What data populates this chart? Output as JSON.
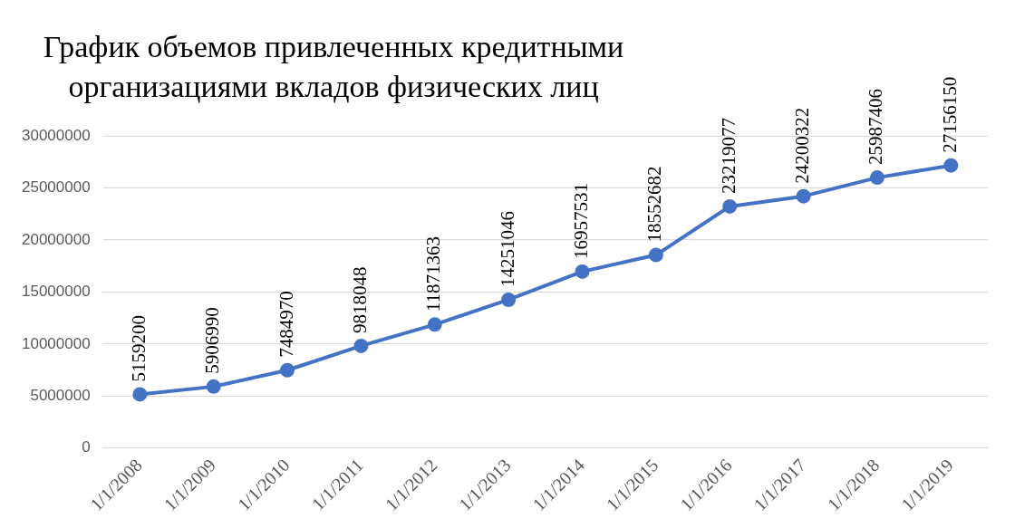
{
  "chart_data": {
    "type": "line",
    "title": "График объемов привлеченных кредитными организациями вкладов физических лиц",
    "categories": [
      "1/1/2008",
      "1/1/2009",
      "1/1/2010",
      "1/1/2011",
      "1/1/2012",
      "1/1/2013",
      "1/1/2014",
      "1/1/2015",
      "1/1/2016",
      "1/1/2017",
      "1/1/2018",
      "1/1/2019"
    ],
    "series": [
      {
        "color": "#4472c4",
        "values": [
          5159200,
          5906990,
          7484970,
          9818048,
          11871363,
          14251046,
          16957531,
          18552682,
          23219077,
          24200322,
          25987406,
          27156150
        ]
      }
    ],
    "ylim": [
      0,
      30000000
    ],
    "yticks": [
      0,
      5000000,
      10000000,
      15000000,
      20000000,
      25000000,
      30000000
    ],
    "grid": "y",
    "legend": false,
    "marker": "circle",
    "line_style": "solid",
    "data_labels": true
  }
}
